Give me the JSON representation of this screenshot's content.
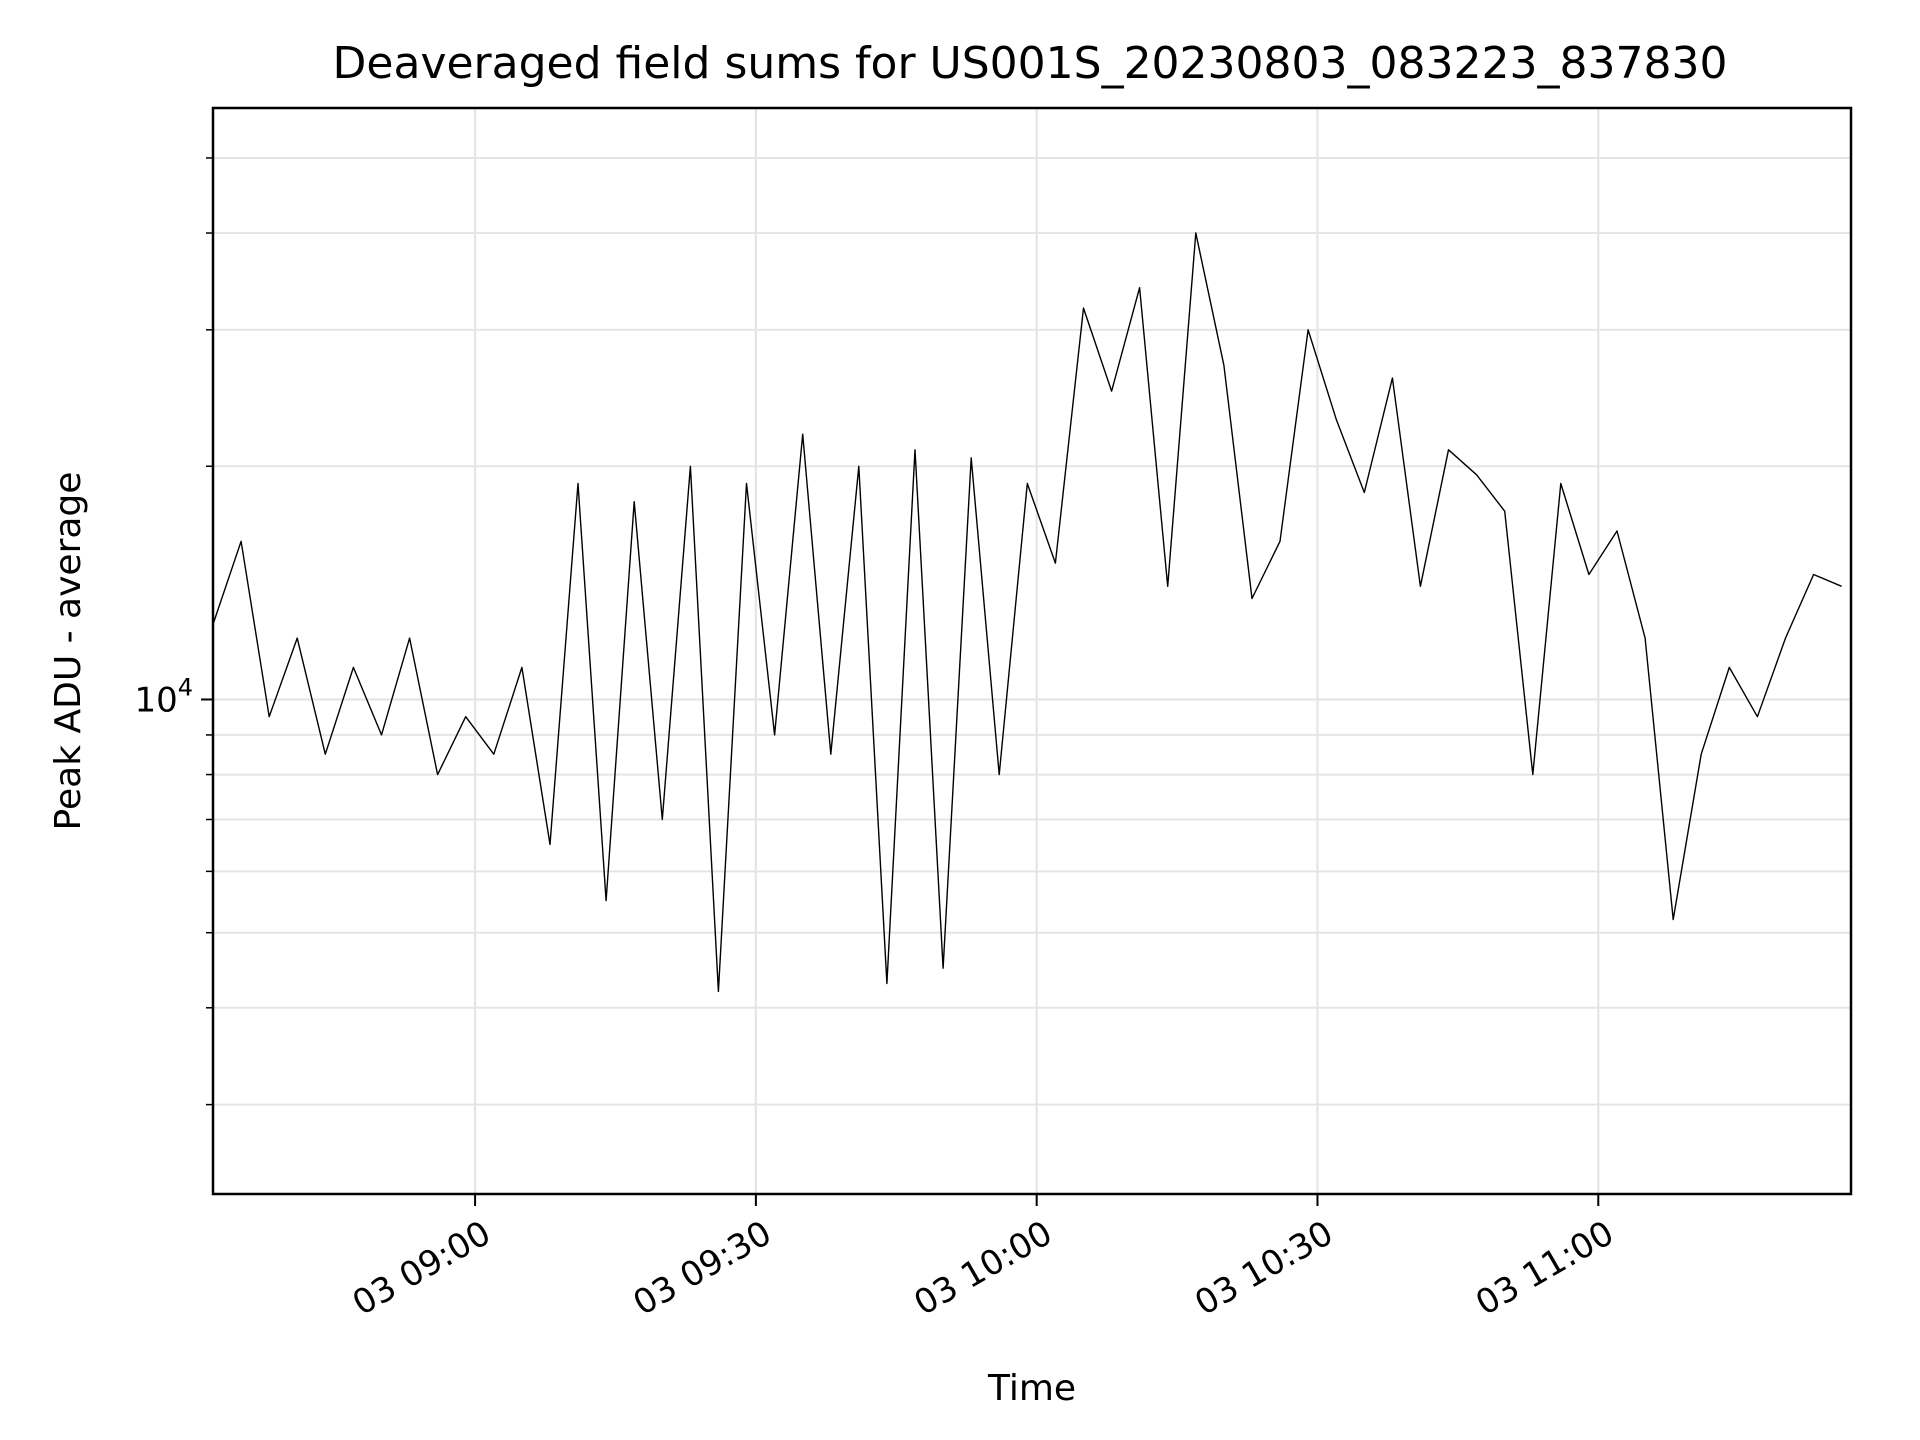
{
  "chart_data": {
    "type": "line",
    "title": "Deaveraged field sums for US001S_20230803_083223_837830",
    "xlabel": "Time",
    "ylabel": "Peak ADU - average",
    "x_start": "2023-08-03 08:32",
    "x_end": "2023-08-03 11:27",
    "x_ticks": [
      "03 09:00",
      "03 09:30",
      "03 10:00",
      "03 10:30",
      "03 11:00"
    ],
    "y_scale": "log",
    "y_ticks": [
      {
        "value": 10000,
        "label": "10",
        "exponent": "4"
      }
    ],
    "ylim": [
      2300,
      58000
    ],
    "grid": true,
    "line_color": "#000000",
    "series": [
      {
        "x": [
          "08:32",
          "08:35",
          "08:38",
          "08:41",
          "08:44",
          "08:47",
          "08:50",
          "08:53",
          "08:56",
          "08:59",
          "09:02",
          "09:05",
          "09:08",
          "09:11",
          "09:14",
          "09:17",
          "09:20",
          "09:23",
          "09:26",
          "09:29",
          "09:32",
          "09:35",
          "09:38",
          "09:41",
          "09:44",
          "09:47",
          "09:50",
          "09:53",
          "09:56",
          "09:59",
          "10:02",
          "10:05",
          "10:08",
          "10:11",
          "10:14",
          "10:17",
          "10:20",
          "10:23",
          "10:26",
          "10:29",
          "10:32",
          "10:35",
          "10:38",
          "10:41",
          "10:44",
          "10:47",
          "10:50",
          "10:53",
          "10:56",
          "10:59",
          "11:02",
          "11:05",
          "11:08",
          "11:11",
          "11:14",
          "11:17",
          "11:20",
          "11:23",
          "11:26"
        ],
        "y": [
          12500,
          16000,
          9500,
          12000,
          8500,
          11000,
          9000,
          12000,
          8000,
          9500,
          8500,
          11000,
          6500,
          19000,
          5500,
          18000,
          7000,
          20000,
          4200,
          19000,
          9000,
          22000,
          8500,
          20000,
          4300,
          21000,
          4500,
          20500,
          8000,
          19000,
          15000,
          32000,
          25000,
          34000,
          14000,
          40000,
          27000,
          13500,
          16000,
          30000,
          23000,
          18500,
          26000,
          14000,
          21000,
          19500,
          17500,
          8000,
          19000,
          14500,
          16500,
          12000,
          5200,
          8500,
          11000,
          9500,
          12000,
          14500,
          14000
        ]
      }
    ]
  }
}
